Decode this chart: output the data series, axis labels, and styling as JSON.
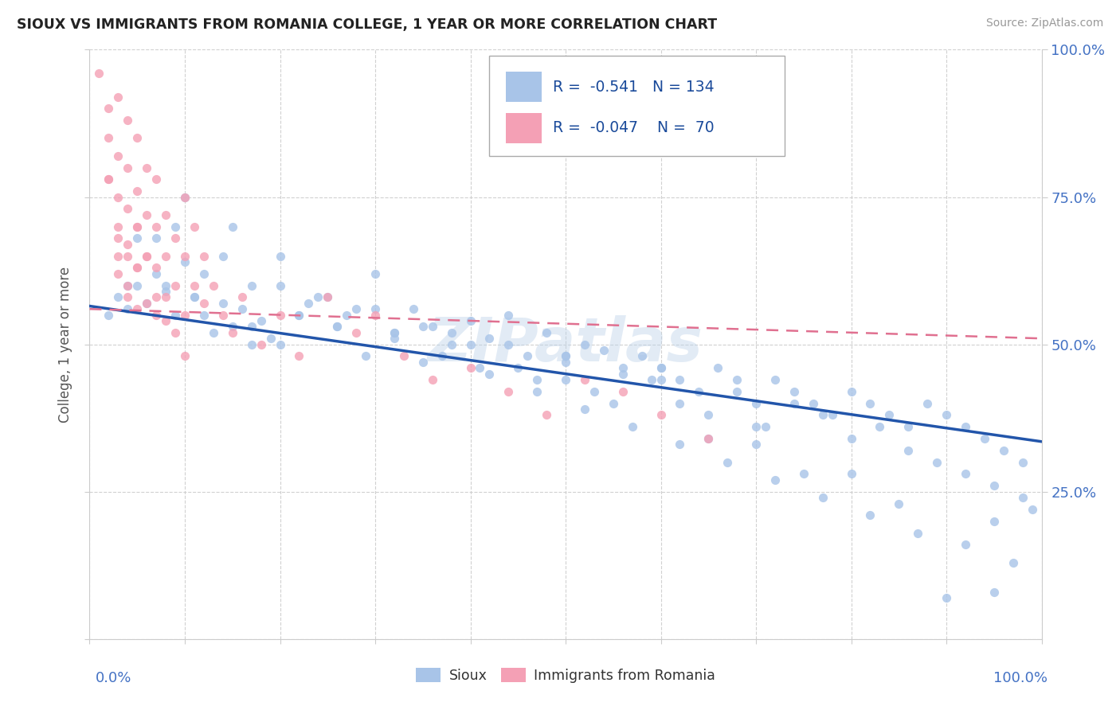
{
  "title": "SIOUX VS IMMIGRANTS FROM ROMANIA COLLEGE, 1 YEAR OR MORE CORRELATION CHART",
  "source": "Source: ZipAtlas.com",
  "ylabel": "College, 1 year or more",
  "xlim": [
    0.0,
    1.0
  ],
  "ylim": [
    0.0,
    1.0
  ],
  "sioux_R": -0.541,
  "sioux_N": 134,
  "romania_R": -0.047,
  "romania_N": 70,
  "sioux_color": "#a8c4e8",
  "romania_color": "#f4a0b5",
  "sioux_line_color": "#2255aa",
  "romania_line_color": "#e07090",
  "watermark": "ZIPatlas",
  "background_color": "#ffffff",
  "grid_color": "#cccccc",
  "sioux_x": [
    0.02,
    0.03,
    0.04,
    0.05,
    0.06,
    0.07,
    0.08,
    0.09,
    0.1,
    0.11,
    0.12,
    0.13,
    0.14,
    0.15,
    0.16,
    0.17,
    0.18,
    0.19,
    0.2,
    0.22,
    0.24,
    0.26,
    0.28,
    0.3,
    0.32,
    0.34,
    0.36,
    0.38,
    0.4,
    0.42,
    0.44,
    0.46,
    0.48,
    0.5,
    0.52,
    0.54,
    0.56,
    0.58,
    0.6,
    0.62,
    0.64,
    0.66,
    0.68,
    0.7,
    0.72,
    0.74,
    0.76,
    0.78,
    0.8,
    0.82,
    0.84,
    0.86,
    0.88,
    0.9,
    0.92,
    0.94,
    0.96,
    0.98,
    0.99,
    0.05,
    0.08,
    0.11,
    0.14,
    0.17,
    0.2,
    0.23,
    0.26,
    0.29,
    0.32,
    0.35,
    0.38,
    0.41,
    0.44,
    0.47,
    0.5,
    0.53,
    0.56,
    0.59,
    0.62,
    0.65,
    0.68,
    0.71,
    0.74,
    0.77,
    0.8,
    0.83,
    0.86,
    0.89,
    0.92,
    0.95,
    0.98,
    0.1,
    0.2,
    0.3,
    0.4,
    0.5,
    0.6,
    0.7,
    0.8,
    0.9,
    0.15,
    0.25,
    0.35,
    0.45,
    0.55,
    0.65,
    0.75,
    0.85,
    0.95,
    0.12,
    0.22,
    0.32,
    0.42,
    0.52,
    0.62,
    0.72,
    0.82,
    0.92,
    0.07,
    0.17,
    0.27,
    0.37,
    0.47,
    0.57,
    0.67,
    0.77,
    0.87,
    0.97,
    0.04,
    0.09,
    0.5,
    0.6,
    0.7,
    0.95
  ],
  "sioux_y": [
    0.55,
    0.58,
    0.56,
    0.6,
    0.57,
    0.62,
    0.59,
    0.55,
    0.64,
    0.58,
    0.55,
    0.52,
    0.57,
    0.53,
    0.56,
    0.5,
    0.54,
    0.51,
    0.6,
    0.55,
    0.58,
    0.53,
    0.56,
    0.62,
    0.52,
    0.56,
    0.53,
    0.5,
    0.54,
    0.51,
    0.55,
    0.48,
    0.52,
    0.47,
    0.5,
    0.49,
    0.45,
    0.48,
    0.46,
    0.44,
    0.42,
    0.46,
    0.44,
    0.4,
    0.44,
    0.42,
    0.4,
    0.38,
    0.42,
    0.4,
    0.38,
    0.36,
    0.4,
    0.38,
    0.36,
    0.34,
    0.32,
    0.3,
    0.22,
    0.68,
    0.6,
    0.58,
    0.65,
    0.53,
    0.5,
    0.57,
    0.53,
    0.48,
    0.52,
    0.47,
    0.52,
    0.46,
    0.5,
    0.44,
    0.48,
    0.42,
    0.46,
    0.44,
    0.4,
    0.38,
    0.42,
    0.36,
    0.4,
    0.38,
    0.34,
    0.36,
    0.32,
    0.3,
    0.28,
    0.26,
    0.24,
    0.75,
    0.65,
    0.56,
    0.5,
    0.44,
    0.46,
    0.33,
    0.28,
    0.07,
    0.7,
    0.58,
    0.53,
    0.46,
    0.4,
    0.34,
    0.28,
    0.23,
    0.2,
    0.62,
    0.55,
    0.51,
    0.45,
    0.39,
    0.33,
    0.27,
    0.21,
    0.16,
    0.68,
    0.6,
    0.55,
    0.48,
    0.42,
    0.36,
    0.3,
    0.24,
    0.18,
    0.13,
    0.6,
    0.7,
    0.48,
    0.44,
    0.36,
    0.08
  ],
  "romania_x": [
    0.01,
    0.02,
    0.02,
    0.02,
    0.03,
    0.03,
    0.03,
    0.03,
    0.03,
    0.04,
    0.04,
    0.04,
    0.04,
    0.04,
    0.05,
    0.05,
    0.05,
    0.05,
    0.05,
    0.06,
    0.06,
    0.06,
    0.06,
    0.07,
    0.07,
    0.07,
    0.07,
    0.08,
    0.08,
    0.08,
    0.09,
    0.09,
    0.1,
    0.1,
    0.1,
    0.11,
    0.11,
    0.12,
    0.12,
    0.13,
    0.14,
    0.15,
    0.16,
    0.18,
    0.2,
    0.22,
    0.25,
    0.28,
    0.3,
    0.33,
    0.36,
    0.4,
    0.44,
    0.48,
    0.52,
    0.56,
    0.6,
    0.65,
    0.02,
    0.03,
    0.03,
    0.04,
    0.04,
    0.05,
    0.05,
    0.06,
    0.07,
    0.08,
    0.09,
    0.1
  ],
  "romania_y": [
    0.96,
    0.9,
    0.85,
    0.78,
    0.92,
    0.82,
    0.75,
    0.7,
    0.65,
    0.88,
    0.8,
    0.73,
    0.67,
    0.6,
    0.85,
    0.76,
    0.7,
    0.63,
    0.56,
    0.8,
    0.72,
    0.65,
    0.57,
    0.78,
    0.7,
    0.63,
    0.55,
    0.72,
    0.65,
    0.58,
    0.68,
    0.6,
    0.75,
    0.65,
    0.55,
    0.7,
    0.6,
    0.65,
    0.57,
    0.6,
    0.55,
    0.52,
    0.58,
    0.5,
    0.55,
    0.48,
    0.58,
    0.52,
    0.55,
    0.48,
    0.44,
    0.46,
    0.42,
    0.38,
    0.44,
    0.42,
    0.38,
    0.34,
    0.78,
    0.68,
    0.62,
    0.65,
    0.58,
    0.7,
    0.63,
    0.65,
    0.58,
    0.54,
    0.52,
    0.48
  ],
  "sioux_intercept": 0.565,
  "sioux_slope": -0.23,
  "romania_intercept": 0.56,
  "romania_slope": -0.05
}
